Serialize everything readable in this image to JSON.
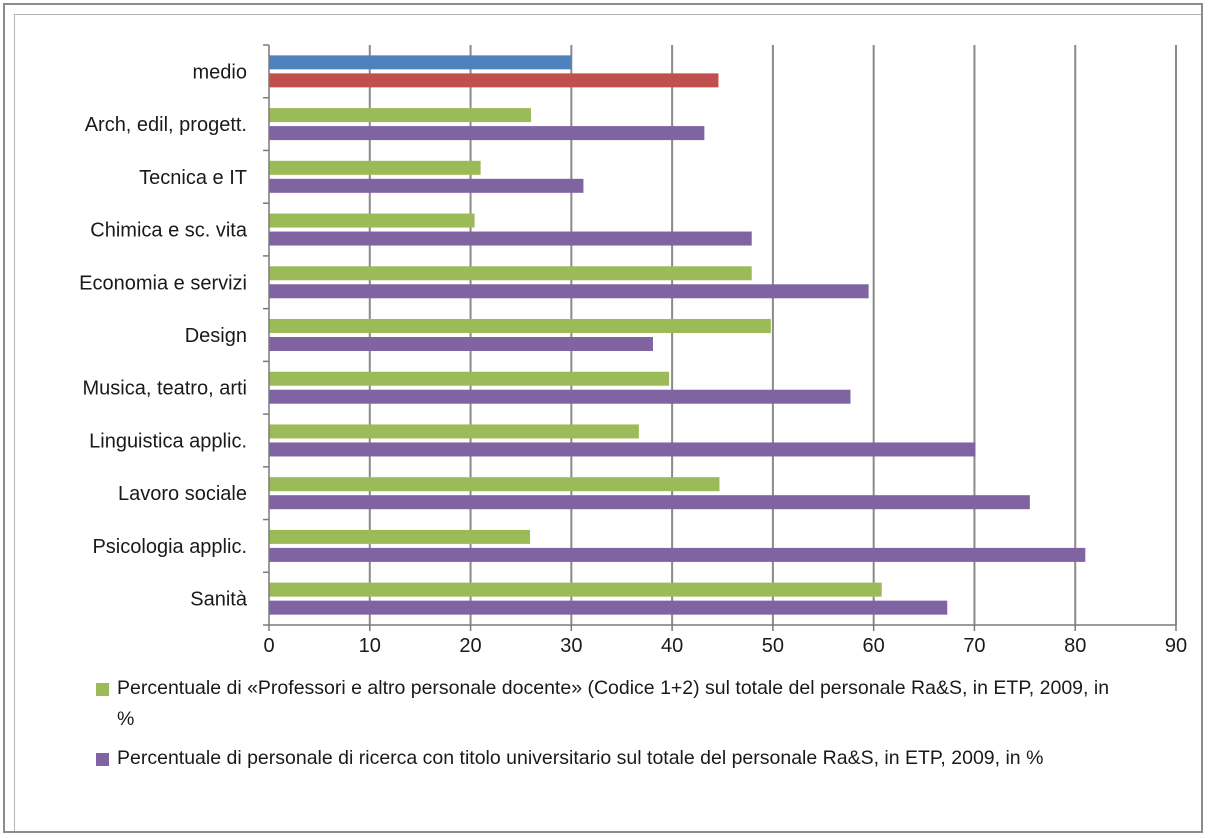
{
  "chart_data": {
    "type": "bar",
    "orientation": "horizontal",
    "categories": [
      "medio",
      "Arch, edil, progett.",
      "Tecnica e IT",
      "Chimica e sc. vita",
      "Economia e servizi",
      "Design",
      "Musica, teatro, arti",
      "Linguistica applic.",
      "Lavoro sociale",
      "Psicologia applic.",
      "Sanità"
    ],
    "series": [
      {
        "name": "Percentuale di «Professori e altro personale docente» (Codice 1+2) sul totale del personale Ra&S, in ETP, 2009, in %",
        "color": "#9BBB59",
        "values": [
          30,
          26,
          21,
          20.4,
          47.9,
          49.8,
          39.7,
          36.7,
          44.7,
          25.9,
          60.8
        ]
      },
      {
        "name": "Percentuale di personale di ricerca con titolo universitario sul totale del personale Ra&S, in ETP, 2009, in %",
        "color": "#8064A2",
        "values": [
          44.6,
          43.2,
          31.2,
          47.9,
          59.5,
          38.1,
          57.7,
          70.1,
          75.5,
          81,
          67.3
        ]
      }
    ],
    "highlight_colors": {
      "medio_first": "#4F81BD",
      "medio_second": "#C0504D"
    },
    "xlim": [
      0,
      90
    ],
    "xticks": [
      0,
      10,
      20,
      30,
      40,
      50,
      60,
      70,
      80,
      90
    ],
    "grid": true,
    "legend_position": "bottom"
  }
}
